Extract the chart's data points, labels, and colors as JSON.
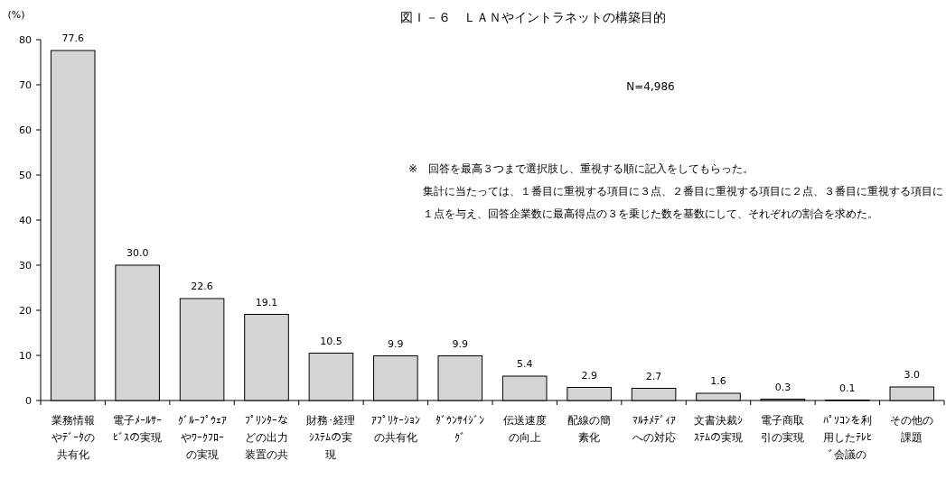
{
  "chart_data": {
    "type": "bar",
    "title": "図Ｉ－６　ＬＡＮやイントラネットの構築目的",
    "ylabel": "(%)",
    "categories": [
      "業務情報やﾃﾞｰﾀの共有化",
      "電子ﾒｰﾙｻｰﾋﾞｽの実現",
      "ｸﾞﾙｰﾌﾟｳｪｱやﾜｰｸﾌﾛｰの実現",
      "ﾌﾟﾘﾝﾀｰなどの出力装置の共",
      "財務･経理ｼｽﾃﾑの実現",
      "ｱﾌﾟﾘｹｰｼｮﾝの共有化",
      "ﾀﾞｳﾝｻｲｼﾞﾝｸﾞ",
      "伝送速度の向上",
      "配線の簡素化",
      "ﾏﾙﾁﾒﾃﾞｨｱへの対応",
      "文書決裁ｼｽﾃﾑの実現",
      "電子商取引の実現",
      "ﾊﾟｿｺﾝを利用したﾃﾚﾋﾞ会議の",
      "その他の課題"
    ],
    "values": [
      77.6,
      30.0,
      22.6,
      19.1,
      10.5,
      9.9,
      9.9,
      5.4,
      2.9,
      2.7,
      1.6,
      0.3,
      0.1,
      3.0
    ],
    "value_labels": [
      "77.6",
      "30.0",
      "22.6",
      "19.1",
      "10.5",
      "9.9",
      "9.9",
      "5.4",
      "2.9",
      "2.7",
      "1.6",
      "0.3",
      "0.1",
      "3.0"
    ],
    "color": "#d4d4d4",
    "ylim": [
      0,
      80
    ],
    "yticks": [
      0,
      10,
      20,
      30,
      40,
      50,
      60,
      70,
      80
    ],
    "annotations": [
      "N=4,986",
      "※　回答を最高３つまで選択肢し、重視する順に記入をしてもらった。",
      "集計に当たっては、１番目に重視する項目に３点、２番目に重視する項目に２点、３番目に重視する項目に１点を与え、回答企業数に最高得点の３を乗じた数を基数にして、それぞれの割合を求めた。"
    ]
  }
}
